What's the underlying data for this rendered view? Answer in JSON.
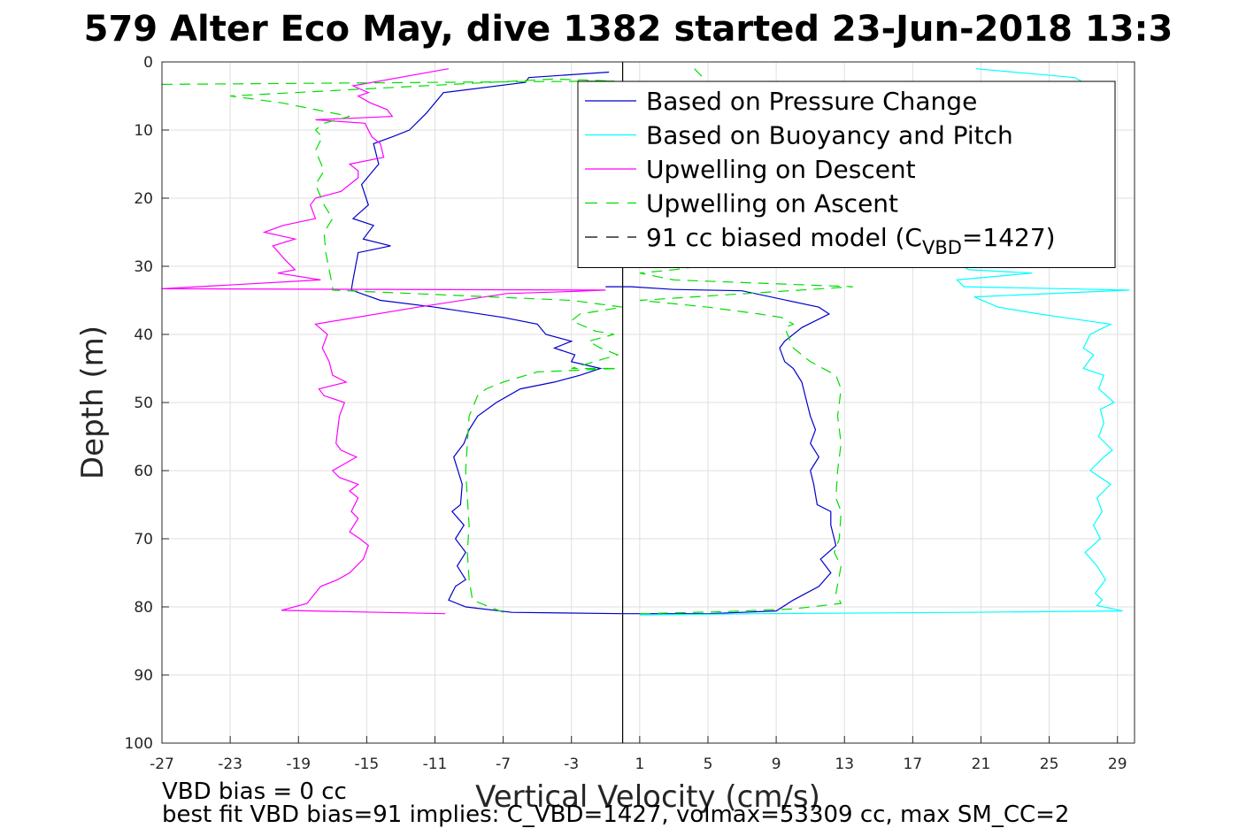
{
  "chart_data": {
    "type": "line",
    "title": "579 Alter Eco May, dive 1382 started 23-Jun-2018 13:3",
    "xlabel": "Vertical Velocity (cm/s)",
    "ylabel": "Depth (m)",
    "xlim": [
      -27,
      30
    ],
    "ylim": [
      0,
      100
    ],
    "y_reversed": true,
    "grid": true,
    "xticks": [
      -27,
      -23,
      -19,
      -15,
      -11,
      -7,
      -3,
      1,
      5,
      9,
      13,
      17,
      21,
      25,
      29
    ],
    "yticks": [
      0,
      10,
      20,
      30,
      40,
      50,
      60,
      70,
      80,
      90,
      100
    ],
    "legend_position": "top-right",
    "legend": [
      {
        "name": "Based on Pressure Change",
        "color": "#0000cc",
        "style": "solid"
      },
      {
        "name": "Based on Buoyancy and Pitch",
        "color": "#00ffff",
        "style": "solid"
      },
      {
        "name": "Upwelling on Descent",
        "color": "#ff00ff",
        "style": "solid"
      },
      {
        "name": "Upwelling on Ascent",
        "color": "#00dd00",
        "style": "dashed"
      },
      {
        "name": "91 cc biased model (C",
        "sub": "VBD",
        "suffix": "=1427)",
        "color": "#000000",
        "style": "dashed"
      }
    ],
    "series": [
      {
        "color": "#0000cc",
        "dash": "",
        "points": [
          [
            -0.8,
            1.5
          ],
          [
            -5.5,
            2.3
          ],
          [
            -5.7,
            3.0
          ],
          [
            -10.5,
            4.5
          ],
          [
            -11.5,
            7.5
          ],
          [
            -12.5,
            10
          ],
          [
            -13.5,
            11
          ],
          [
            -14.6,
            12
          ],
          [
            -14.3,
            15
          ],
          [
            -15.3,
            18
          ],
          [
            -14.9,
            21
          ],
          [
            -15.8,
            23
          ],
          [
            -14.6,
            24
          ],
          [
            -15.2,
            26
          ],
          [
            -13.6,
            27
          ],
          [
            -15.5,
            28
          ],
          [
            -15.8,
            32
          ],
          [
            -15.9,
            33.5
          ],
          [
            -14.2,
            35
          ],
          [
            -11,
            36
          ],
          [
            -7,
            37.5
          ],
          [
            -5,
            38.5
          ],
          [
            -4.5,
            40
          ],
          [
            -3,
            41
          ],
          [
            -4,
            42
          ],
          [
            -2.8,
            43
          ],
          [
            -3,
            44
          ],
          [
            -1.3,
            45
          ],
          [
            -2.5,
            46
          ],
          [
            -4,
            47
          ],
          [
            -6,
            48
          ],
          [
            -7.4,
            50
          ],
          [
            -8.5,
            52
          ],
          [
            -9,
            54
          ],
          [
            -9.3,
            56
          ],
          [
            -9.9,
            58
          ],
          [
            -9.4,
            62
          ],
          [
            -9.5,
            65
          ],
          [
            -10,
            66
          ],
          [
            -9.3,
            68
          ],
          [
            -9.8,
            70
          ],
          [
            -9.2,
            72
          ],
          [
            -9.7,
            74
          ],
          [
            -9.2,
            76
          ],
          [
            -9.8,
            77
          ],
          [
            -10.2,
            79
          ],
          [
            -9.2,
            80
          ],
          [
            -6.5,
            80.8
          ],
          [
            0,
            81
          ],
          [
            5,
            81
          ],
          [
            7,
            80.8
          ],
          [
            9,
            80.6
          ],
          [
            10,
            79
          ],
          [
            11.5,
            77
          ],
          [
            12.2,
            75
          ],
          [
            11.6,
            73
          ],
          [
            12.5,
            71
          ],
          [
            12.2,
            68
          ],
          [
            12.2,
            66
          ],
          [
            11.4,
            65
          ],
          [
            11.2,
            62
          ],
          [
            11,
            60
          ],
          [
            11.5,
            58
          ],
          [
            11,
            56
          ],
          [
            11.3,
            54
          ],
          [
            11,
            52
          ],
          [
            10.8,
            50
          ],
          [
            10.5,
            47
          ],
          [
            10,
            45
          ],
          [
            9.5,
            44
          ],
          [
            9.2,
            42
          ],
          [
            9.5,
            41
          ],
          [
            10.5,
            39
          ],
          [
            12.1,
            37
          ],
          [
            11.5,
            36
          ],
          [
            7,
            33.6
          ],
          [
            3,
            33.4
          ],
          [
            0.5,
            33
          ],
          [
            -1,
            33
          ]
        ]
      },
      {
        "color": "#00ffff",
        "dash": "",
        "points": [
          [
            20.7,
            1
          ],
          [
            26.5,
            2.3
          ],
          [
            27,
            3
          ],
          [
            27.5,
            10
          ]
        ]
      },
      {
        "color": "#00ffff",
        "dash": "",
        "points": [
          [
            1,
            81.2
          ],
          [
            8,
            81
          ],
          [
            20,
            80.8
          ],
          [
            29.3,
            80.6
          ],
          [
            27.8,
            79.8
          ],
          [
            28.1,
            79
          ],
          [
            27.7,
            78
          ],
          [
            28.3,
            76
          ],
          [
            27.8,
            74
          ],
          [
            27.1,
            72
          ],
          [
            28,
            70
          ],
          [
            27.6,
            68
          ],
          [
            28.1,
            66
          ],
          [
            27.8,
            64
          ],
          [
            28.6,
            62
          ],
          [
            27.4,
            60
          ],
          [
            28.2,
            58
          ],
          [
            28.7,
            57
          ],
          [
            27.9,
            55
          ],
          [
            28.2,
            53
          ],
          [
            28,
            51
          ],
          [
            28.8,
            50
          ],
          [
            27.9,
            48
          ],
          [
            28.2,
            46
          ],
          [
            27,
            45
          ],
          [
            27.6,
            43
          ],
          [
            27,
            42
          ],
          [
            27.4,
            40
          ],
          [
            28.6,
            38.5
          ],
          [
            25.8,
            37.5
          ],
          [
            24.4,
            37
          ],
          [
            22,
            36
          ],
          [
            20.6,
            34.5
          ],
          [
            29.7,
            33.5
          ],
          [
            20,
            33
          ],
          [
            19.6,
            32
          ],
          [
            24,
            31
          ],
          [
            20.3,
            30.5
          ],
          [
            19.9,
            30
          ]
        ]
      },
      {
        "color": "#ff00ff",
        "dash": "",
        "points": [
          [
            -10.4,
            81
          ],
          [
            -20,
            80.5
          ],
          [
            -18.5,
            79.5
          ],
          [
            -17.7,
            77
          ],
          [
            -16.7,
            76
          ],
          [
            -16,
            75
          ],
          [
            -15.2,
            73
          ],
          [
            -14.9,
            71
          ],
          [
            -15.4,
            70
          ],
          [
            -16,
            69
          ],
          [
            -15.5,
            67
          ],
          [
            -15.9,
            66
          ],
          [
            -15.5,
            64
          ],
          [
            -16,
            63
          ],
          [
            -15.5,
            62
          ],
          [
            -16.6,
            61
          ],
          [
            -17,
            60
          ],
          [
            -15.6,
            58
          ],
          [
            -16.5,
            57
          ],
          [
            -16.8,
            56
          ],
          [
            -16.7,
            54
          ],
          [
            -16.6,
            52
          ],
          [
            -16.3,
            50
          ],
          [
            -17.5,
            49
          ],
          [
            -17.8,
            48
          ],
          [
            -16.2,
            47
          ],
          [
            -17,
            46
          ],
          [
            -17.2,
            44
          ],
          [
            -17.6,
            42
          ],
          [
            -17.3,
            40
          ],
          [
            -18,
            38.5
          ],
          [
            -12,
            36
          ],
          [
            -6.8,
            34
          ],
          [
            -3,
            33.7
          ],
          [
            -1,
            33.5
          ],
          [
            -27,
            33.3
          ],
          [
            -17.7,
            32
          ],
          [
            -20.2,
            31
          ],
          [
            -19.2,
            30.5
          ],
          [
            -19.8,
            29
          ],
          [
            -20.5,
            27
          ],
          [
            -19.2,
            26
          ],
          [
            -21,
            25
          ],
          [
            -19.9,
            24
          ],
          [
            -18,
            23
          ],
          [
            -18.3,
            21
          ],
          [
            -18,
            20
          ],
          [
            -16.5,
            19
          ],
          [
            -15.5,
            17
          ],
          [
            -15.5,
            16
          ],
          [
            -16,
            15
          ],
          [
            -14,
            14
          ],
          [
            -14.2,
            12
          ],
          [
            -14.7,
            11
          ],
          [
            -15.1,
            9
          ],
          [
            -18,
            8.5
          ],
          [
            -13.5,
            8
          ],
          [
            -13.8,
            7
          ],
          [
            -14.8,
            6
          ],
          [
            -15.5,
            5
          ],
          [
            -14.9,
            4.5
          ],
          [
            -15.8,
            3.5
          ],
          [
            -10.2,
            1
          ]
        ]
      },
      {
        "color": "#00dd00",
        "dash": "12 8",
        "points": [
          [
            -27,
            3.3
          ],
          [
            -0.5,
            2.8
          ],
          [
            -4,
            2.5
          ],
          [
            -23,
            5
          ],
          [
            -20,
            6
          ],
          [
            -18,
            7
          ],
          [
            -16,
            8
          ],
          [
            -17.5,
            9
          ],
          [
            -18,
            10
          ],
          [
            -17.6,
            11
          ],
          [
            -18,
            13
          ],
          [
            -17.5,
            16
          ],
          [
            -18,
            18
          ],
          [
            -17.5,
            21
          ],
          [
            -17,
            23
          ],
          [
            -17.5,
            25
          ],
          [
            -17.4,
            28
          ],
          [
            -17,
            33
          ],
          [
            -17,
            33.5
          ],
          [
            -3,
            35
          ],
          [
            0,
            36
          ],
          [
            -2.5,
            37
          ],
          [
            -3,
            38
          ],
          [
            -1.6,
            39.5
          ],
          [
            -0.5,
            40
          ],
          [
            -2,
            41
          ],
          [
            -1.3,
            42
          ],
          [
            -0.3,
            43
          ],
          [
            -3,
            45
          ],
          [
            -0.3,
            45
          ],
          [
            -5,
            45.5
          ],
          [
            -7,
            47
          ],
          [
            -8,
            48
          ],
          [
            -8.5,
            49
          ],
          [
            -9,
            52
          ],
          [
            -9.1,
            56
          ],
          [
            -9.2,
            60
          ],
          [
            -9.1,
            64
          ],
          [
            -9,
            68
          ],
          [
            -9.1,
            72
          ],
          [
            -9,
            76
          ],
          [
            -8.8,
            79
          ],
          [
            -6.8,
            81
          ]
        ]
      },
      {
        "color": "#00dd00",
        "dash": "12 8",
        "points": [
          [
            4.2,
            1
          ],
          [
            5,
            3
          ],
          [
            4.8,
            5
          ]
        ]
      },
      {
        "color": "#00dd00",
        "dash": "12 8",
        "points": [
          [
            1,
            81
          ],
          [
            6,
            80.7
          ],
          [
            10,
            80.3
          ],
          [
            12.8,
            79.5
          ],
          [
            12.5,
            78
          ],
          [
            12.8,
            74
          ],
          [
            12.4,
            72
          ],
          [
            12.7,
            70
          ],
          [
            12.8,
            66
          ],
          [
            12.5,
            64
          ],
          [
            12.6,
            60
          ],
          [
            12.8,
            56
          ],
          [
            12.6,
            52
          ],
          [
            12.8,
            48
          ],
          [
            12.5,
            46
          ],
          [
            11,
            44
          ],
          [
            10,
            42
          ],
          [
            9.5,
            39
          ],
          [
            10,
            38.5
          ],
          [
            9.3,
            37.5
          ],
          [
            8,
            37
          ],
          [
            5,
            36
          ],
          [
            1,
            35
          ],
          [
            13.5,
            33
          ],
          [
            3,
            32
          ],
          [
            1,
            31
          ],
          [
            3,
            30.5
          ],
          [
            4.5,
            30
          ]
        ]
      },
      {
        "color": "#000000",
        "dash": "",
        "points": [
          [
            0,
            0
          ],
          [
            0,
            100
          ]
        ]
      }
    ]
  },
  "footer": {
    "line1": "VBD bias = 0 cc",
    "line2": "best fit VBD bias=91 implies: C_VBD=1427, volmax=53309 cc, max SM_CC=2"
  }
}
